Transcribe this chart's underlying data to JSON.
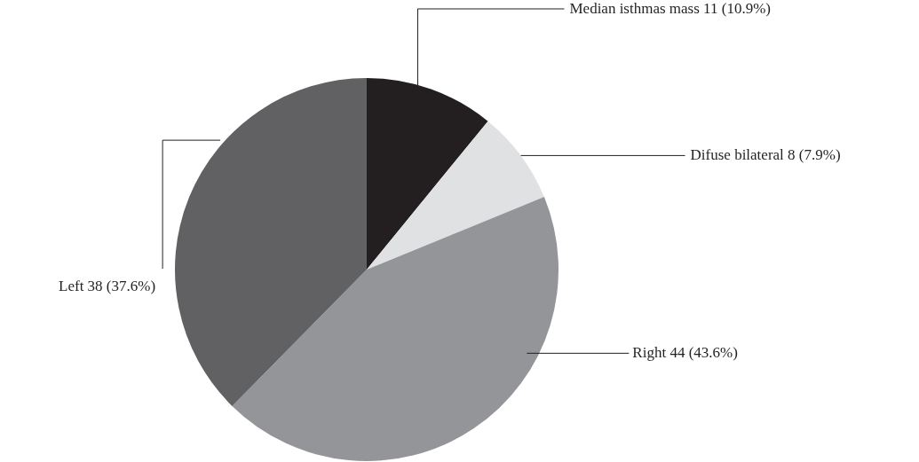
{
  "chart_data": {
    "type": "pie",
    "categories": [
      "Median isthmas mass",
      "Difuse bilateral",
      "Right",
      "Left"
    ],
    "values": [
      11,
      8,
      44,
      38
    ],
    "value_labels": [
      "11 (10.9%)",
      "8 (7.9%)",
      "44 (43.6%)",
      "38 (37.6%)"
    ],
    "colors": [
      "#231f20",
      "#e0e1e3",
      "#939598",
      "#616163"
    ]
  }
}
